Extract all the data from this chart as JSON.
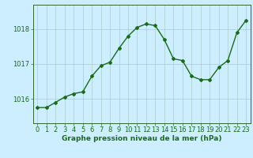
{
  "x": [
    0,
    1,
    2,
    3,
    4,
    5,
    6,
    7,
    8,
    9,
    10,
    11,
    12,
    13,
    14,
    15,
    16,
    17,
    18,
    19,
    20,
    21,
    22,
    23
  ],
  "y": [
    1015.75,
    1015.75,
    1015.9,
    1016.05,
    1016.15,
    1016.2,
    1016.65,
    1016.95,
    1017.05,
    1017.45,
    1017.8,
    1018.05,
    1018.15,
    1018.1,
    1017.7,
    1017.15,
    1017.1,
    1016.65,
    1016.55,
    1016.55,
    1016.9,
    1017.1,
    1017.9,
    1018.25
  ],
  "line_color": "#1a6b1a",
  "marker": "D",
  "marker_size": 2.0,
  "bg_color": "#cceeff",
  "grid_color": "#aacccc",
  "xlabel": "Graphe pression niveau de la mer (hPa)",
  "xlabel_fontsize": 6.5,
  "yticks": [
    1016,
    1017,
    1018
  ],
  "ylim": [
    1015.3,
    1018.7
  ],
  "xlim": [
    -0.5,
    23.5
  ],
  "tick_label_fontsize": 6.0,
  "tick_label_color": "#1a6b1a",
  "line_width": 1.0
}
